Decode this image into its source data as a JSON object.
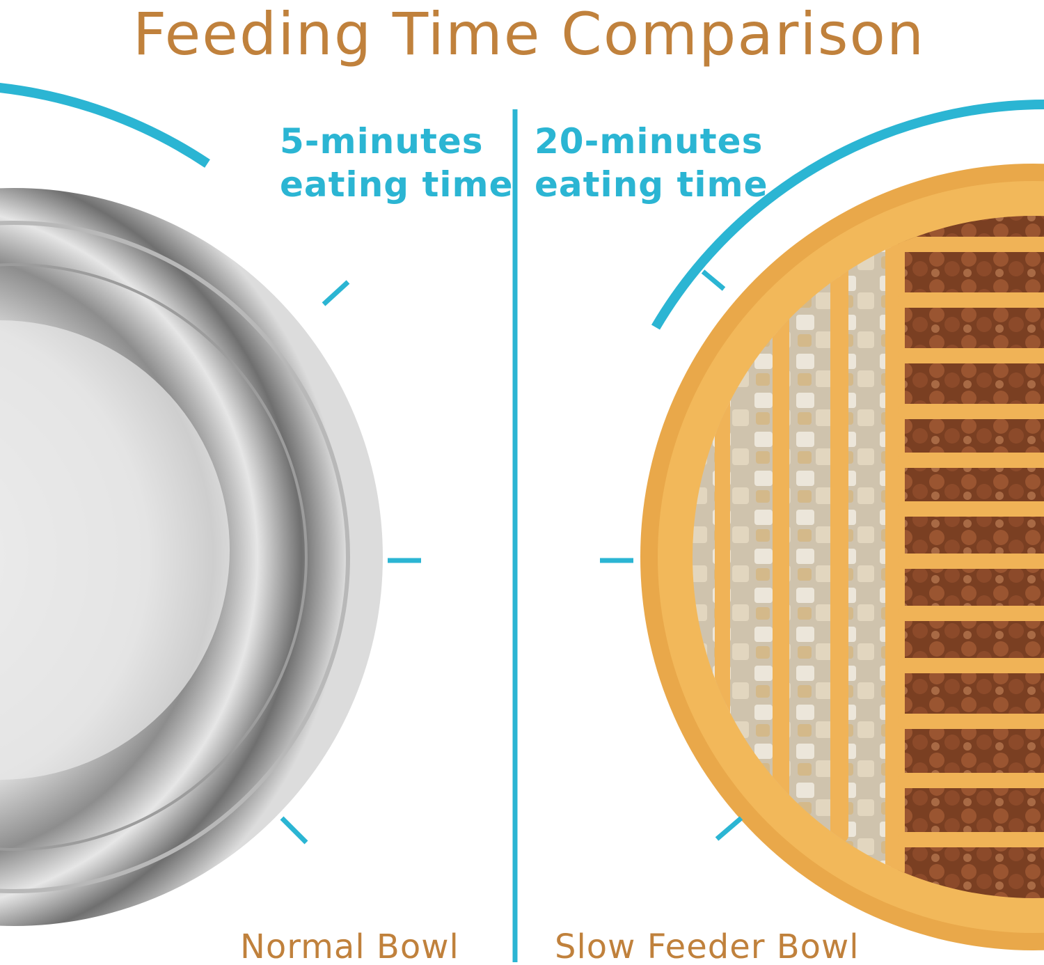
{
  "title": "Feeding Time Comparison",
  "panels": [
    {
      "time_lines": [
        "5-minutes",
        "eating time"
      ],
      "label": "Normal Bowl"
    },
    {
      "time_lines": [
        "20-minutes",
        "eating time"
      ],
      "label": "Slow Feeder Bowl"
    }
  ]
}
